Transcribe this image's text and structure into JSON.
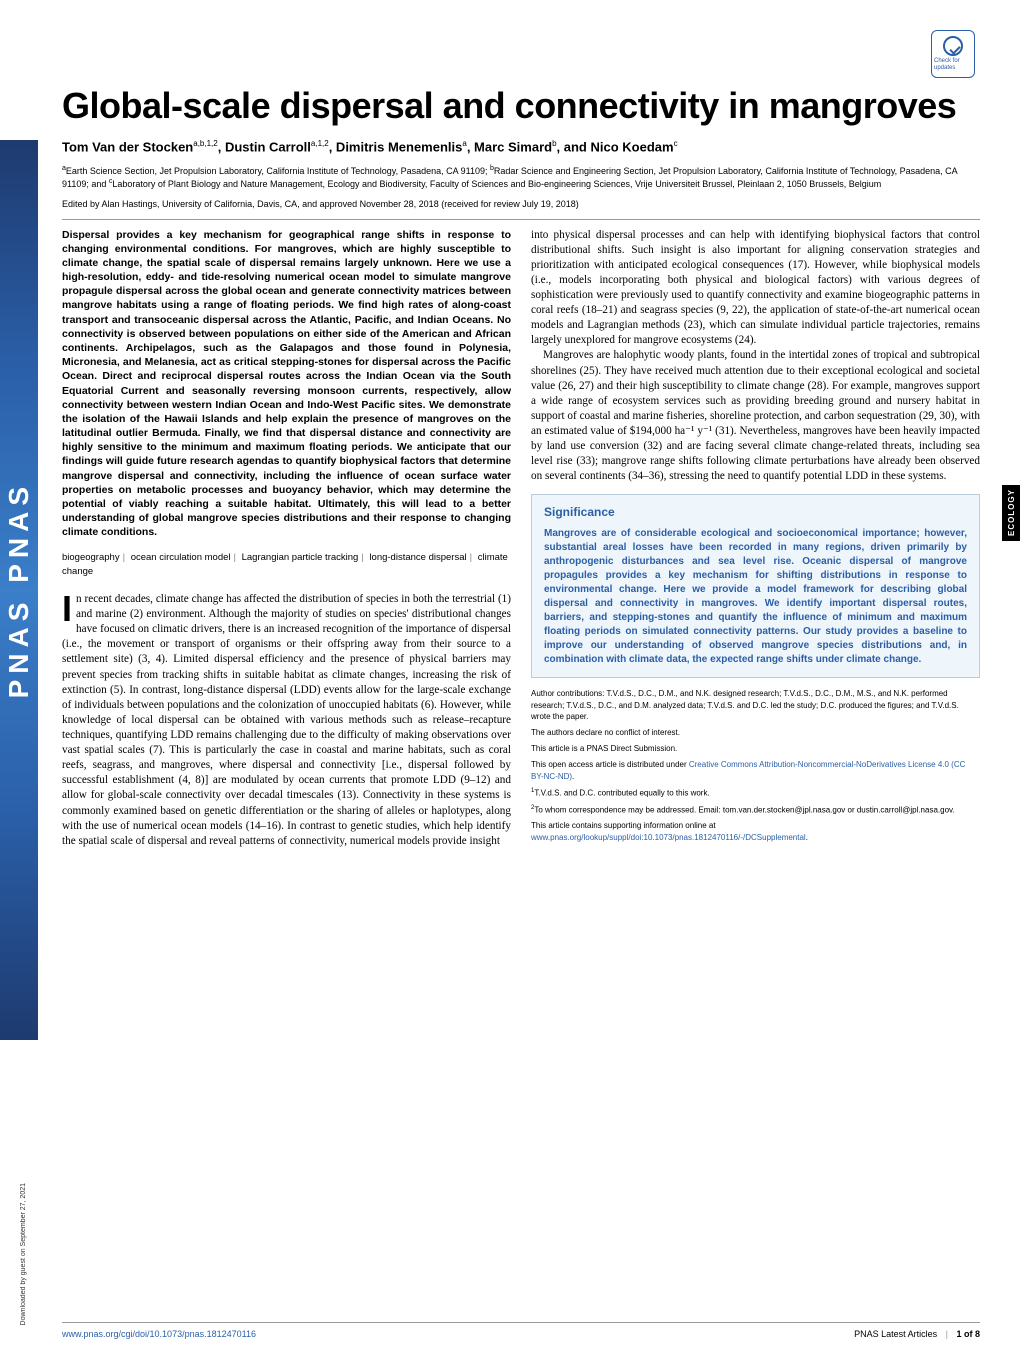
{
  "journal_spine": "PNAS  PNAS",
  "crossmark_label": "Check for updates",
  "download_note": "Downloaded by guest on September 27, 2021",
  "ecology_tab": "ECOLOGY",
  "title": "Global-scale dispersal and connectivity in mangroves",
  "authors_html": "Tom Van der Stocken<sup>a,b,1,2</sup>, Dustin Carroll<sup>a,1,2</sup>, Dimitris Menemenlis<sup>a</sup>, Marc Simard<sup>b</sup>, and Nico Koedam<sup>c</sup>",
  "affiliations_html": "<sup>a</sup>Earth Science Section, Jet Propulsion Laboratory, California Institute of Technology, Pasadena, CA 91109; <sup>b</sup>Radar Science and Engineering Section, Jet Propulsion Laboratory, California Institute of Technology, Pasadena, CA 91109; and <sup>c</sup>Laboratory of Plant Biology and Nature Management, Ecology and Biodiversity, Faculty of Sciences and Bio-engineering Sciences, Vrije Universiteit Brussel, Pleinlaan 2, 1050 Brussels, Belgium",
  "edited_by": "Edited by Alan Hastings, University of California, Davis, CA, and approved November 28, 2018 (received for review July 19, 2018)",
  "abstract": "Dispersal provides a key mechanism for geographical range shifts in response to changing environmental conditions. For mangroves, which are highly susceptible to climate change, the spatial scale of dispersal remains largely unknown. Here we use a high-resolution, eddy- and tide-resolving numerical ocean model to simulate mangrove propagule dispersal across the global ocean and generate connectivity matrices between mangrove habitats using a range of floating periods. We find high rates of along-coast transport and transoceanic dispersal across the Atlantic, Pacific, and Indian Oceans. No connectivity is observed between populations on either side of the American and African continents. Archipelagos, such as the Galapagos and those found in Polynesia, Micronesia, and Melanesia, act as critical stepping-stones for dispersal across the Pacific Ocean. Direct and reciprocal dispersal routes across the Indian Ocean via the South Equatorial Current and seasonally reversing monsoon currents, respectively, allow connectivity between western Indian Ocean and Indo-West Pacific sites. We demonstrate the isolation of the Hawaii Islands and help explain the presence of mangroves on the latitudinal outlier Bermuda. Finally, we find that dispersal distance and connectivity are highly sensitive to the minimum and maximum floating periods. We anticipate that our findings will guide future research agendas to quantify biophysical factors that determine mangrove dispersal and connectivity, including the influence of ocean surface water properties on metabolic processes and buoyancy behavior, which may determine the potential of viably reaching a suitable habitat. Ultimately, this will lead to a better understanding of global mangrove species distributions and their response to changing climate conditions.",
  "keywords": [
    "biogeography",
    "ocean circulation model",
    "Lagrangian particle tracking",
    "long-distance dispersal",
    "climate change"
  ],
  "body_left_dropcap": "I",
  "body_left": "n recent decades, climate change has affected the distribution of species in both the terrestrial (1) and marine (2) environment. Although the majority of studies on species' distributional changes have focused on climatic drivers, there is an increased recognition of the importance of dispersal (i.e., the movement or transport of organisms or their offspring away from their source to a settlement site) (3, 4). Limited dispersal efficiency and the presence of physical barriers may prevent species from tracking shifts in suitable habitat as climate changes, increasing the risk of extinction (5). In contrast, long-distance dispersal (LDD) events allow for the large-scale exchange of individuals between populations and the colonization of unoccupied habitats (6). However, while knowledge of local dispersal can be obtained with various methods such as release–recapture techniques, quantifying LDD remains challenging due to the difficulty of making observations over vast spatial scales (7). This is particularly the case in coastal and marine habitats, such as coral reefs, seagrass, and mangroves, where dispersal and connectivity [i.e., dispersal followed by successful establishment (4, 8)] are modulated by ocean currents that promote LDD (9–12) and allow for global-scale connectivity over decadal timescales (13). Connectivity in these systems is commonly examined based on genetic differentiation or the sharing of alleles or haplotypes, along with the use of numerical ocean models (14–16). In contrast to genetic studies, which help identify the spatial scale of dispersal and reveal patterns of connectivity, numerical models provide insight",
  "body_right_p1": "into physical dispersal processes and can help with identifying biophysical factors that control distributional shifts. Such insight is also important for aligning conservation strategies and prioritization with anticipated ecological consequences (17). However, while biophysical models (i.e., models incorporating both physical and biological factors) with various degrees of sophistication were previously used to quantify connectivity and examine biogeographic patterns in coral reefs (18–21) and seagrass species (9, 22), the application of state-of-the-art numerical ocean models and Lagrangian methods (23), which can simulate individual particle trajectories, remains largely unexplored for mangrove ecosystems (24).",
  "body_right_p2": "Mangroves are halophytic woody plants, found in the intertidal zones of tropical and subtropical shorelines (25). They have received much attention due to their exceptional ecological and societal value (26, 27) and their high susceptibility to climate change (28). For example, mangroves support a wide range of ecosystem services such as providing breeding ground and nursery habitat in support of coastal and marine fisheries, shoreline protection, and carbon sequestration (29, 30), with an estimated value of $194,000 ha⁻¹ y⁻¹ (31). Nevertheless, mangroves have been heavily impacted by land use conversion (32) and are facing several climate change-related threats, including sea level rise (33); mangrove range shifts following climate perturbations have already been observed on several continents (34–36), stressing the need to quantify potential LDD in these systems.",
  "significance": {
    "title": "Significance",
    "text": "Mangroves are of considerable ecological and socioeconomical importance; however, substantial areal losses have been recorded in many regions, driven primarily by anthropogenic disturbances and sea level rise. Oceanic dispersal of mangrove propagules provides a key mechanism for shifting distributions in response to environmental change. Here we provide a model framework for describing global dispersal and connectivity in mangroves. We identify important dispersal routes, barriers, and stepping-stones and quantify the influence of minimum and maximum floating periods on simulated connectivity patterns. Our study provides a baseline to improve our understanding of observed mangrove species distributions and, in combination with climate data, the expected range shifts under climate change."
  },
  "footnotes": {
    "contrib": "Author contributions: T.V.d.S., D.C., D.M., and N.K. designed research; T.V.d.S., D.C., D.M., M.S., and N.K. performed research; T.V.d.S., D.C., and D.M. analyzed data; T.V.d.S. and D.C. led the study; D.C. produced the figures; and T.V.d.S. wrote the paper.",
    "conflict": "The authors declare no conflict of interest.",
    "direct": "This article is a PNAS Direct Submission.",
    "license_pre": "This open access article is distributed under ",
    "license_link": "Creative Commons Attribution-Noncommercial-NoDerivatives License 4.0 (CC BY-NC-ND)",
    "equal": "T.V.d.S. and D.C. contributed equally to this work.",
    "corr": "To whom correspondence may be addressed. Email: tom.van.der.stocken@jpl.nasa.gov or dustin.carroll@jpl.nasa.gov.",
    "suppl_pre": "This article contains supporting information online at ",
    "suppl_link": "www.pnas.org/lookup/suppl/doi:10.1073/pnas.1812470116/-/DCSupplemental"
  },
  "footer": {
    "doi": "www.pnas.org/cgi/doi/10.1073/pnas.1812470116",
    "right_label": "PNAS Latest Articles",
    "page_info": "1 of 8"
  }
}
